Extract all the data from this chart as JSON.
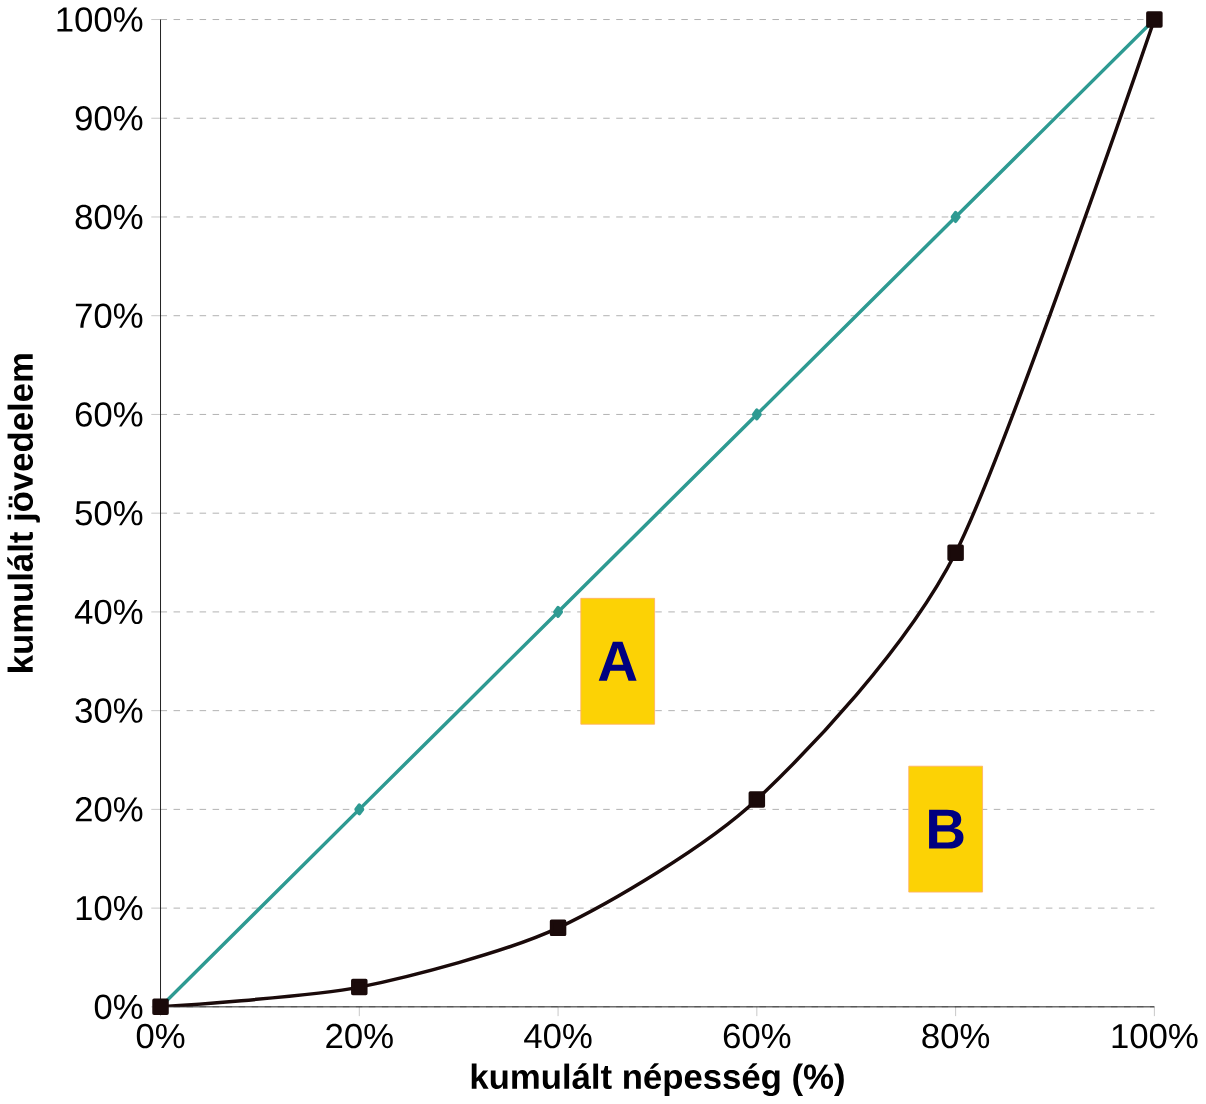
{
  "chart_data": {
    "type": "line",
    "xlabel": "kumulált népesség (%)",
    "ylabel": "kumulált jövedelem",
    "x": [
      0,
      20,
      40,
      60,
      80,
      100
    ],
    "series": [
      {
        "color": "#2e9a92",
        "values": [
          0,
          20,
          40,
          60,
          80,
          100
        ],
        "marker": "diamond"
      },
      {
        "color": "#1a0a0a",
        "values": [
          0,
          2,
          8,
          21,
          46,
          100
        ],
        "marker": "square"
      }
    ],
    "xlim": [
      0,
      100
    ],
    "ylim": [
      0,
      100
    ],
    "xticks": [
      {
        "value": 0,
        "label": "0%"
      },
      {
        "value": 20,
        "label": "20%"
      },
      {
        "value": 40,
        "label": "40%"
      },
      {
        "value": 60,
        "label": "60%"
      },
      {
        "value": 80,
        "label": "80%"
      },
      {
        "value": 100,
        "label": "100%"
      }
    ],
    "yticks": [
      {
        "value": 0,
        "label": "0%"
      },
      {
        "value": 10,
        "label": "10%"
      },
      {
        "value": 20,
        "label": "20%"
      },
      {
        "value": 30,
        "label": "30%"
      },
      {
        "value": 40,
        "label": "40%"
      },
      {
        "value": 50,
        "label": "50%"
      },
      {
        "value": 60,
        "label": "60%"
      },
      {
        "value": 70,
        "label": "70%"
      },
      {
        "value": 80,
        "label": "80%"
      },
      {
        "value": 90,
        "label": "90%"
      },
      {
        "value": 100,
        "label": "100%"
      }
    ],
    "grid": "y",
    "line_style": "solid",
    "annotations": [
      "A",
      "B"
    ]
  }
}
